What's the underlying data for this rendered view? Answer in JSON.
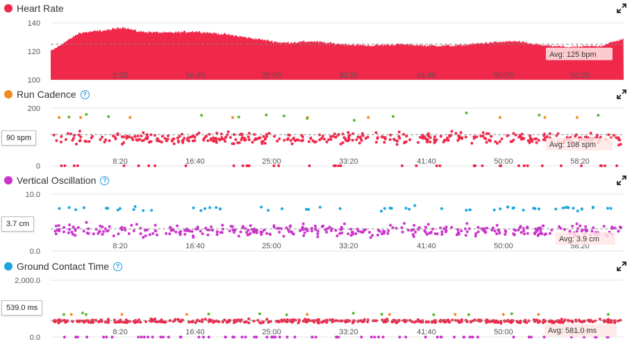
{
  "x_ticks": [
    "8:20",
    "16:40",
    "25:00",
    "33:20",
    "41:40",
    "50:00",
    "58:20"
  ],
  "colors": {
    "heart_rate": "#f0284a",
    "cadence_marker": "#f08c1e",
    "oscillation_marker": "#cc33cc",
    "contact_marker": "#1aa5e0",
    "green_point": "#5cb82e",
    "grid": "#e3e3e3",
    "avg_line": "#888888",
    "help_icon": "#1a9bd7"
  },
  "panels": {
    "heart_rate": {
      "title": "Heart Rate",
      "y_ticks": [
        "140",
        "120",
        "100"
      ],
      "avg_label": "Avg: 125 bpm",
      "icon": "expand-icon"
    },
    "cadence": {
      "title": "Run Cadence",
      "y_ticks": [
        "200",
        "0"
      ],
      "avg_label": "Avg: 108 spm",
      "value_box": "90 spm",
      "icon": "expand-icon"
    },
    "oscillation": {
      "title": "Vertical Oscillation",
      "y_ticks": [
        "10.0",
        "0.0"
      ],
      "avg_label": "Avg: 3.9 cm",
      "value_box": "3.7 cm",
      "icon": "expand-icon"
    },
    "contact": {
      "title": "Ground Contact Time",
      "y_ticks": [
        "2,000.0",
        "0.0"
      ],
      "avg_label": "Avg: 581.0 ms",
      "value_box": "539.0 ms",
      "icon": "expand-icon"
    }
  },
  "chart_data": [
    {
      "type": "area",
      "title": "Heart Rate",
      "x_range_seconds": [
        0,
        3950
      ],
      "ylim": [
        100,
        140
      ],
      "average": 125,
      "series": [
        {
          "x": [
            0,
            200,
            400,
            500,
            600,
            800,
            1000,
            1200,
            1400,
            1600,
            1800,
            2000,
            2200,
            2400,
            2600,
            2800,
            3000,
            3200,
            3400,
            3600,
            3800,
            3950
          ],
          "values": [
            120,
            133,
            135,
            137,
            134,
            133,
            134,
            132,
            129,
            126,
            127,
            125,
            124,
            125,
            124,
            124,
            126,
            127,
            124,
            123,
            124,
            129
          ]
        }
      ]
    },
    {
      "type": "scatter",
      "title": "Run Cadence",
      "ylim": [
        0,
        200
      ],
      "average": 108,
      "cursor_value": 90,
      "series": [
        {
          "x_range_seconds": [
            0,
            3950
          ],
          "center": 95,
          "spread": 28,
          "zero_line_points": true
        }
      ]
    },
    {
      "type": "scatter",
      "title": "Vertical Oscillation",
      "ylim": [
        0,
        10
      ],
      "average": 3.9,
      "cursor_value": 3.7,
      "series": [
        {
          "x_range_seconds": [
            0,
            3950
          ],
          "center": 3.6,
          "spread": 1.6,
          "high_band": 7.5
        }
      ]
    },
    {
      "type": "scatter",
      "title": "Ground Contact Time",
      "ylim": [
        0,
        2000
      ],
      "average": 581,
      "cursor_value": 539,
      "series": [
        {
          "x_range_seconds": [
            0,
            3950
          ],
          "center": 560,
          "spread": 90,
          "zero_line_points": true
        }
      ]
    }
  ]
}
